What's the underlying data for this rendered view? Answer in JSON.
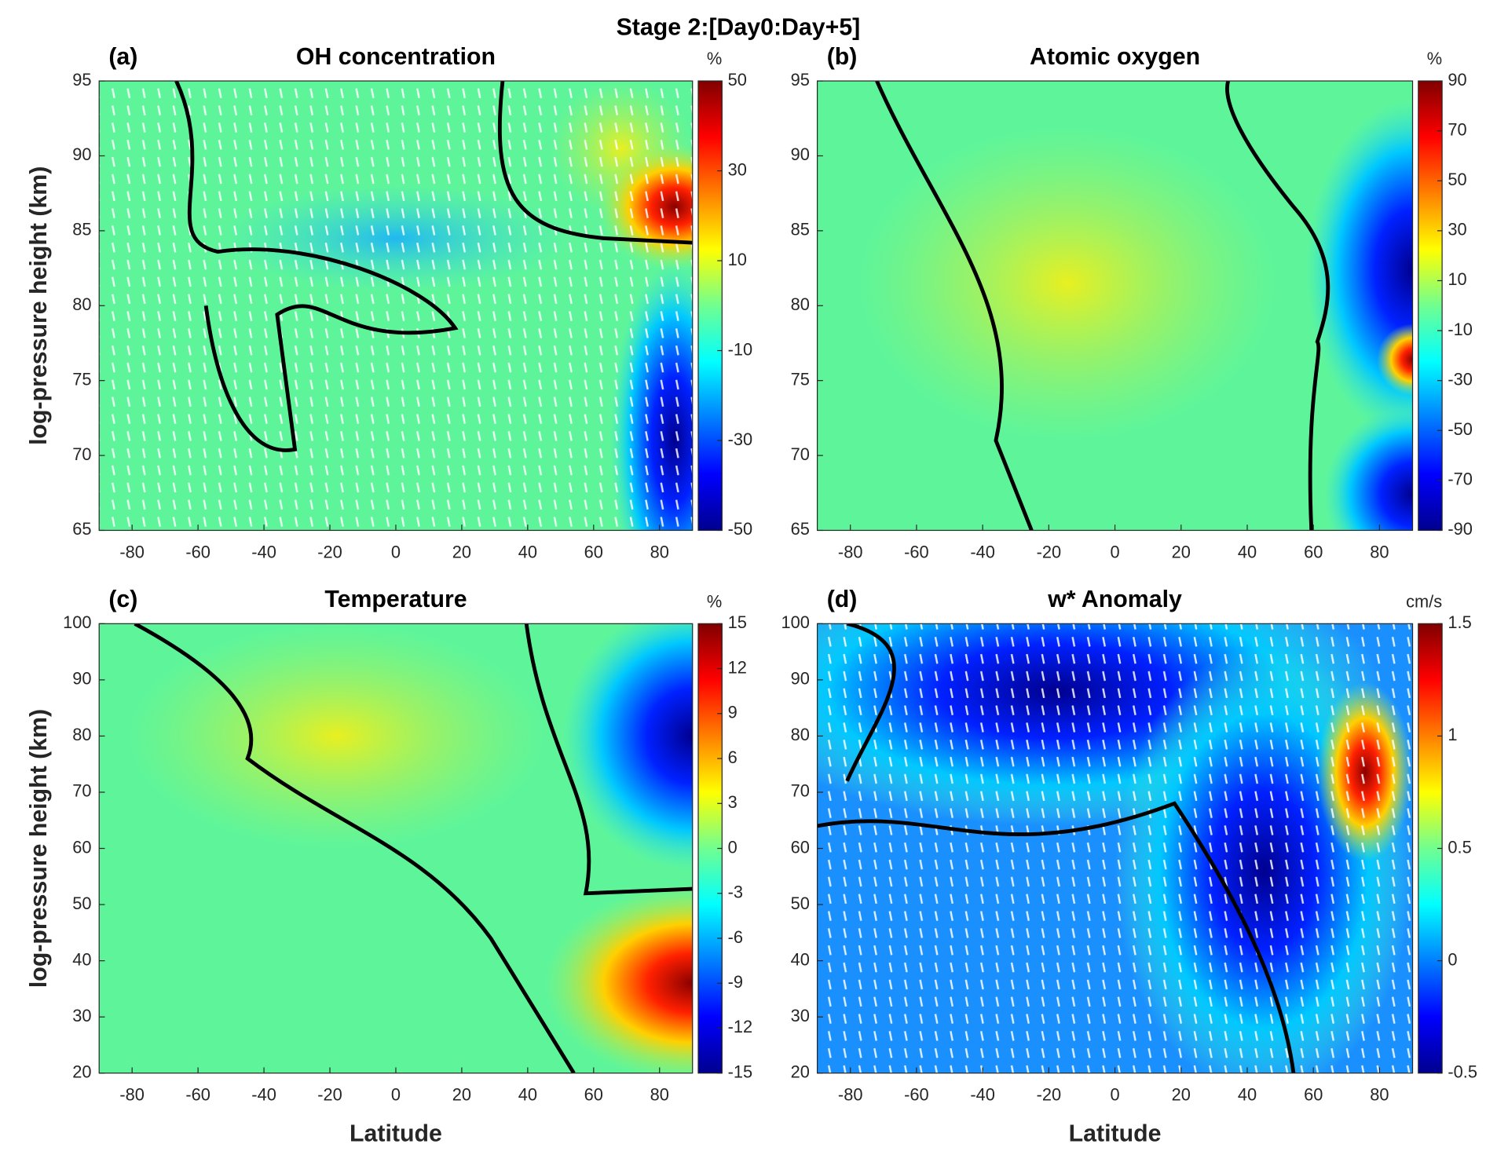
{
  "title": "Stage 2:[Day0:Day+5]",
  "chart_data": [
    {
      "type": "contour",
      "panel_label": "(a)",
      "title": "OH concentration",
      "ylabel": "log-pressure height (km)",
      "xlim": [
        -90,
        90
      ],
      "xticks": [
        -80,
        -60,
        -40,
        -20,
        0,
        20,
        40,
        60,
        80
      ],
      "ylim": [
        65,
        95
      ],
      "yticks": [
        65,
        70,
        75,
        80,
        85,
        90,
        95
      ],
      "colorbar": {
        "label": "%",
        "lim": [
          -50,
          50
        ],
        "ticks": [
          -50,
          -30,
          -10,
          10,
          30,
          50
        ]
      }
    },
    {
      "type": "contour",
      "panel_label": "(b)",
      "title": "Atomic oxygen",
      "xlim": [
        -90,
        90
      ],
      "xticks": [
        -80,
        -60,
        -40,
        -20,
        0,
        20,
        40,
        60,
        80
      ],
      "ylim": [
        65,
        95
      ],
      "yticks": [
        65,
        70,
        75,
        80,
        85,
        90,
        95
      ],
      "colorbar": {
        "label": "%",
        "lim": [
          -90,
          90
        ],
        "ticks": [
          -90,
          -70,
          -50,
          -30,
          -10,
          10,
          30,
          50,
          70,
          90
        ]
      }
    },
    {
      "type": "contour",
      "panel_label": "(c)",
      "title": "Temperature",
      "xlabel": "Latitude",
      "ylabel": "log-pressure height (km)",
      "xlim": [
        -90,
        90
      ],
      "xticks": [
        -80,
        -60,
        -40,
        -20,
        0,
        20,
        40,
        60,
        80
      ],
      "ylim": [
        20,
        100
      ],
      "yticks": [
        20,
        30,
        40,
        50,
        60,
        70,
        80,
        90,
        100
      ],
      "colorbar": {
        "label": "%",
        "lim": [
          -15,
          15
        ],
        "ticks": [
          -15,
          -12,
          -9,
          -6,
          -3,
          0,
          3,
          6,
          9,
          12,
          15
        ]
      }
    },
    {
      "type": "contour",
      "panel_label": "(d)",
      "title": "w* Anomaly",
      "xlabel": "Latitude",
      "xlim": [
        -90,
        90
      ],
      "xticks": [
        -80,
        -60,
        -40,
        -20,
        0,
        20,
        40,
        60,
        80
      ],
      "ylim": [
        20,
        100
      ],
      "yticks": [
        20,
        30,
        40,
        50,
        60,
        70,
        80,
        90,
        100
      ],
      "colorbar": {
        "label": "cm/s",
        "lim": [
          -0.5,
          1.5
        ],
        "ticks": [
          -0.5,
          0,
          0.5,
          1,
          1.5
        ]
      }
    }
  ]
}
